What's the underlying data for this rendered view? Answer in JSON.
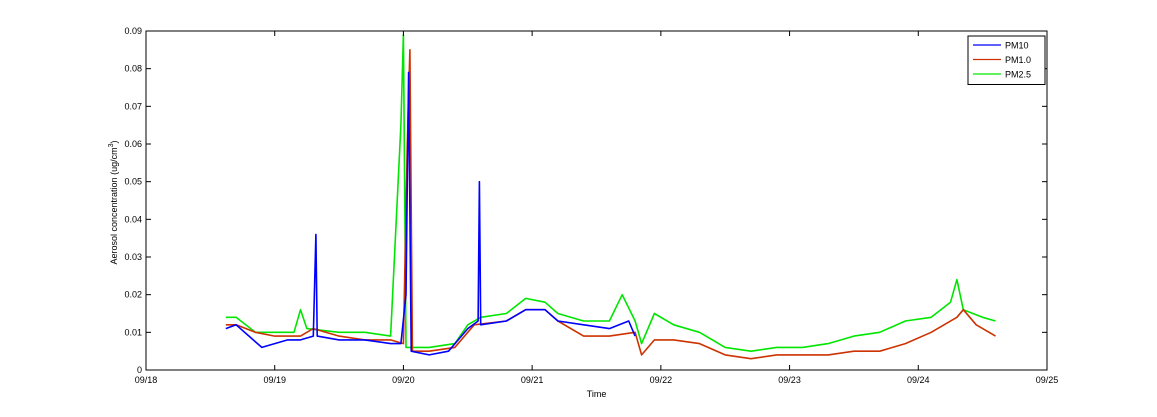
{
  "colors": {
    "PM10": "#0000ff",
    "PM1.0": "#cc3300",
    "PM2.5": "#00e600",
    "axes": "#000000",
    "background": "#ffffff"
  },
  "chart_data": {
    "type": "line",
    "title": "",
    "xlabel": "Time",
    "ylabel": "Aerosol concentration (ug/cm",
    "ylabel_superscript": "3",
    "ylabel_suffix": ")",
    "xlim": [
      18,
      25
    ],
    "ylim": [
      0,
      0.09
    ],
    "x_unit": "day of month (September)",
    "xticks": [
      18,
      19,
      20,
      21,
      22,
      23,
      24,
      25
    ],
    "xtick_labels": [
      "09/18",
      "09/19",
      "09/20",
      "09/21",
      "09/22",
      "09/23",
      "09/24",
      "09/25"
    ],
    "yticks": [
      0,
      0.01,
      0.02,
      0.03,
      0.04,
      0.05,
      0.06,
      0.07,
      0.08,
      0.09
    ],
    "ytick_labels": [
      "0",
      "0.01",
      "0.02",
      "0.03",
      "0.04",
      "0.05",
      "0.06",
      "0.07",
      "0.08",
      "0.09"
    ],
    "grid": false,
    "legend_position": "top-right",
    "series": [
      {
        "name": "PM10",
        "color": "#0000ff",
        "points": [
          [
            18.62,
            0.011
          ],
          [
            18.7,
            0.012
          ],
          [
            18.8,
            0.009
          ],
          [
            18.9,
            0.006
          ],
          [
            19.0,
            0.007
          ],
          [
            19.1,
            0.008
          ],
          [
            19.2,
            0.008
          ],
          [
            19.3,
            0.009
          ],
          [
            19.32,
            0.036
          ],
          [
            19.33,
            0.009
          ],
          [
            19.5,
            0.008
          ],
          [
            19.7,
            0.008
          ],
          [
            19.9,
            0.007
          ],
          [
            19.98,
            0.007
          ],
          [
            20.02,
            0.02
          ],
          [
            20.04,
            0.079
          ],
          [
            20.06,
            0.005
          ],
          [
            20.2,
            0.004
          ],
          [
            20.35,
            0.005
          ],
          [
            20.5,
            0.011
          ],
          [
            20.58,
            0.013
          ],
          [
            20.59,
            0.05
          ],
          [
            20.6,
            0.012
          ],
          [
            20.8,
            0.013
          ],
          [
            20.95,
            0.016
          ],
          [
            21.1,
            0.016
          ],
          [
            21.2,
            0.013
          ],
          [
            21.4,
            0.012
          ],
          [
            21.6,
            0.011
          ],
          [
            21.75,
            0.013
          ],
          [
            21.8,
            0.009
          ]
        ]
      },
      {
        "name": "PM1.0",
        "color": "#cc3300",
        "points": [
          [
            18.62,
            0.012
          ],
          [
            18.7,
            0.012
          ],
          [
            18.85,
            0.01
          ],
          [
            19.0,
            0.009
          ],
          [
            19.2,
            0.009
          ],
          [
            19.3,
            0.011
          ],
          [
            19.5,
            0.009
          ],
          [
            19.7,
            0.008
          ],
          [
            19.9,
            0.008
          ],
          [
            20.0,
            0.007
          ],
          [
            20.03,
            0.06
          ],
          [
            20.05,
            0.085
          ],
          [
            20.07,
            0.005
          ],
          [
            20.2,
            0.005
          ],
          [
            20.4,
            0.006
          ],
          [
            20.55,
            0.012
          ],
          [
            20.8,
            0.013
          ],
          [
            20.95,
            0.016
          ],
          [
            21.1,
            0.016
          ],
          [
            21.2,
            0.013
          ],
          [
            21.4,
            0.009
          ],
          [
            21.6,
            0.009
          ],
          [
            21.8,
            0.01
          ],
          [
            21.85,
            0.004
          ],
          [
            21.95,
            0.008
          ],
          [
            22.1,
            0.008
          ],
          [
            22.3,
            0.007
          ],
          [
            22.5,
            0.004
          ],
          [
            22.7,
            0.003
          ],
          [
            22.9,
            0.004
          ],
          [
            23.1,
            0.004
          ],
          [
            23.3,
            0.004
          ],
          [
            23.5,
            0.005
          ],
          [
            23.7,
            0.005
          ],
          [
            23.9,
            0.007
          ],
          [
            24.1,
            0.01
          ],
          [
            24.3,
            0.014
          ],
          [
            24.35,
            0.016
          ],
          [
            24.45,
            0.012
          ],
          [
            24.55,
            0.01
          ],
          [
            24.6,
            0.009
          ]
        ]
      },
      {
        "name": "PM2.5",
        "color": "#00e600",
        "points": [
          [
            18.62,
            0.014
          ],
          [
            18.7,
            0.014
          ],
          [
            18.85,
            0.01
          ],
          [
            19.0,
            0.01
          ],
          [
            19.15,
            0.01
          ],
          [
            19.2,
            0.016
          ],
          [
            19.25,
            0.011
          ],
          [
            19.5,
            0.01
          ],
          [
            19.7,
            0.01
          ],
          [
            19.9,
            0.009
          ],
          [
            19.98,
            0.065
          ],
          [
            20.0,
            0.089
          ],
          [
            20.02,
            0.006
          ],
          [
            20.2,
            0.006
          ],
          [
            20.4,
            0.007
          ],
          [
            20.5,
            0.012
          ],
          [
            20.6,
            0.014
          ],
          [
            20.8,
            0.015
          ],
          [
            20.95,
            0.019
          ],
          [
            21.1,
            0.018
          ],
          [
            21.2,
            0.015
          ],
          [
            21.4,
            0.013
          ],
          [
            21.6,
            0.013
          ],
          [
            21.7,
            0.02
          ],
          [
            21.8,
            0.013
          ],
          [
            21.85,
            0.007
          ],
          [
            21.95,
            0.015
          ],
          [
            22.1,
            0.012
          ],
          [
            22.3,
            0.01
          ],
          [
            22.5,
            0.006
          ],
          [
            22.7,
            0.005
          ],
          [
            22.9,
            0.006
          ],
          [
            23.1,
            0.006
          ],
          [
            23.3,
            0.007
          ],
          [
            23.5,
            0.009
          ],
          [
            23.7,
            0.01
          ],
          [
            23.9,
            0.013
          ],
          [
            24.1,
            0.014
          ],
          [
            24.25,
            0.018
          ],
          [
            24.3,
            0.024
          ],
          [
            24.35,
            0.016
          ],
          [
            24.5,
            0.014
          ],
          [
            24.6,
            0.013
          ]
        ]
      }
    ]
  }
}
